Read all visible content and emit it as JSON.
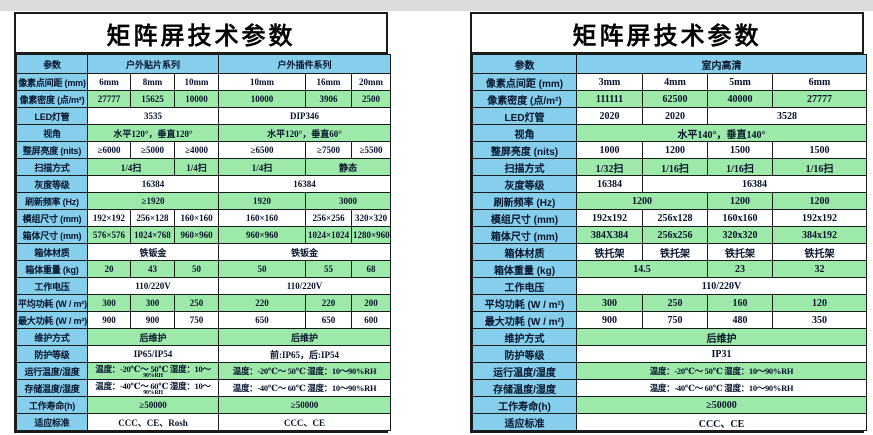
{
  "colors": {
    "cell_blue": "#86cfec",
    "cell_green": "#9de9a9",
    "grid_border": "#1b1b1b",
    "top_strip": "#dcdcdc"
  },
  "left_table": {
    "title": "矩阵屏技术参数",
    "header": {
      "param": "参数",
      "groups": [
        {
          "label": "户外贴片系列",
          "span": 3
        },
        {
          "label": "户外插件系列",
          "span": 3
        }
      ]
    },
    "rows": [
      {
        "label": "像素点间距 (mm)",
        "bg": "white",
        "cells": [
          {
            "text": "6mm"
          },
          {
            "text": "8mm"
          },
          {
            "text": "10mm"
          },
          {
            "text": "10mm"
          },
          {
            "text": "16mm"
          },
          {
            "text": "20mm"
          }
        ]
      },
      {
        "label": "像素密度 (点/m²)",
        "bg": "green",
        "cells": [
          {
            "text": "27777"
          },
          {
            "text": "15625"
          },
          {
            "text": "10000"
          },
          {
            "text": "10000"
          },
          {
            "text": "3906"
          },
          {
            "text": "2500"
          }
        ]
      },
      {
        "label": "LED灯管",
        "bg": "white",
        "cells": [
          {
            "text": "3535",
            "span": 3
          },
          {
            "text": "DIP346",
            "span": 3
          }
        ]
      },
      {
        "label": "视角",
        "bg": "green",
        "cells": [
          {
            "text": "水平120°，垂直120°",
            "span": 3
          },
          {
            "text": "水平120°，垂直60°",
            "span": 3
          }
        ]
      },
      {
        "label": "整屏亮度 (nits)",
        "bg": "white",
        "cells": [
          {
            "text": "≥6000"
          },
          {
            "text": "≥5000"
          },
          {
            "text": "≥4000"
          },
          {
            "text": "≥6500"
          },
          {
            "text": "≥7500"
          },
          {
            "text": "≥5500"
          }
        ]
      },
      {
        "label": "扫描方式",
        "bg": "green",
        "cells": [
          {
            "text": "1/4扫",
            "span": 2
          },
          {
            "text": "1/4扫"
          },
          {
            "text": "1/4扫"
          },
          {
            "text": "静态",
            "span": 2
          }
        ]
      },
      {
        "label": "灰度等级",
        "bg": "white",
        "cells": [
          {
            "text": "16384",
            "span": 3
          },
          {
            "text": "16384",
            "span": 3
          }
        ]
      },
      {
        "label": "刷新频率 (Hz)",
        "bg": "green",
        "cells": [
          {
            "text": "≥1920",
            "span": 3
          },
          {
            "text": "1920"
          },
          {
            "text": "3000",
            "span": 2
          }
        ]
      },
      {
        "label": "模组尺寸 (mm)",
        "bg": "white",
        "cells": [
          {
            "text": "192×192"
          },
          {
            "text": "256×128"
          },
          {
            "text": "160×160"
          },
          {
            "text": "160×160"
          },
          {
            "text": "256×256"
          },
          {
            "text": "320×320"
          }
        ]
      },
      {
        "label": "箱体尺寸 (mm)",
        "bg": "green",
        "cells": [
          {
            "text": "576×576"
          },
          {
            "text": "1024×768"
          },
          {
            "text": "960×960"
          },
          {
            "text": "960×960"
          },
          {
            "text": "1024×1024"
          },
          {
            "text": "1280×960"
          }
        ]
      },
      {
        "label": "箱体材质",
        "bg": "white",
        "cells": [
          {
            "text": "铁钣金",
            "span": 3
          },
          {
            "text": "铁钣金",
            "span": 3
          }
        ]
      },
      {
        "label": "箱体重量 (kg)",
        "bg": "green",
        "cells": [
          {
            "text": "20"
          },
          {
            "text": "43"
          },
          {
            "text": "50"
          },
          {
            "text": "50"
          },
          {
            "text": "55"
          },
          {
            "text": "68"
          }
        ]
      },
      {
        "label": "工作电压",
        "bg": "white",
        "cells": [
          {
            "text": "110/220V",
            "span": 3
          },
          {
            "text": "110/220V",
            "span": 3
          }
        ]
      },
      {
        "label": "平均功耗 (W / m²)",
        "bg": "green",
        "cells": [
          {
            "text": "300"
          },
          {
            "text": "300"
          },
          {
            "text": "250"
          },
          {
            "text": "220"
          },
          {
            "text": "220"
          },
          {
            "text": "200"
          }
        ]
      },
      {
        "label": "最大功耗 (W / m²)",
        "bg": "white",
        "cells": [
          {
            "text": "900"
          },
          {
            "text": "900"
          },
          {
            "text": "750"
          },
          {
            "text": "650"
          },
          {
            "text": "650"
          },
          {
            "text": "600"
          }
        ]
      },
      {
        "label": "维护方式",
        "bg": "green",
        "cells": [
          {
            "text": "后维护",
            "span": 3
          },
          {
            "text": "后维护",
            "span": 3
          }
        ]
      },
      {
        "label": "防护等级",
        "bg": "white",
        "cells": [
          {
            "text": "IP65/IP54",
            "span": 3
          },
          {
            "text": "前:IP65，后:IP54",
            "span": 3
          }
        ]
      },
      {
        "label": "运行温度/湿度",
        "bg": "green",
        "cells": [
          {
            "text": "温度：-20℃～ 50℃ 湿度：10～",
            "sub": "90%RH",
            "span": 3
          },
          {
            "text": "温度：-20℃～ 50℃ 湿度：10～90%RH",
            "span": 3
          }
        ]
      },
      {
        "label": "存储温度/湿度",
        "bg": "white",
        "cells": [
          {
            "text": "温度：-40℃～ 60℃ 湿度：10～",
            "sub": "90%RH",
            "span": 3
          },
          {
            "text": "温度：-40℃～ 60℃ 湿度：10～90%RH",
            "span": 3
          }
        ]
      },
      {
        "label": "工作寿命(h)",
        "bg": "green",
        "cells": [
          {
            "text": "≥50000",
            "span": 3
          },
          {
            "text": "≥50000",
            "span": 3
          }
        ]
      },
      {
        "label": "适应标准",
        "bg": "white",
        "cells": [
          {
            "text": "CCC、CE、Rosh",
            "span": 3
          },
          {
            "text": "CCC、CE",
            "span": 3
          }
        ]
      }
    ]
  },
  "right_table": {
    "title": "矩阵屏技术参数",
    "header": {
      "param": "参数",
      "groups": [
        {
          "label": "室内高清",
          "span": 4
        }
      ]
    },
    "rows": [
      {
        "label": "像素点间距 (mm)",
        "bg": "white",
        "cells": [
          {
            "text": "3mm"
          },
          {
            "text": "4mm"
          },
          {
            "text": "5mm"
          },
          {
            "text": "6mm"
          }
        ]
      },
      {
        "label": "像素密度 (点/m²)",
        "bg": "green",
        "cells": [
          {
            "text": "111111"
          },
          {
            "text": "62500"
          },
          {
            "text": "40000"
          },
          {
            "text": "27777"
          }
        ]
      },
      {
        "label": "LED灯管",
        "bg": "white",
        "cells": [
          {
            "text": "2020"
          },
          {
            "text": "2020"
          },
          {
            "text": "3528",
            "span": 2
          }
        ]
      },
      {
        "label": "视角",
        "bg": "green",
        "cells": [
          {
            "text": "水平140°，垂直140°",
            "span": 4
          }
        ]
      },
      {
        "label": "整屏亮度 (nits)",
        "bg": "white",
        "cells": [
          {
            "text": "1000"
          },
          {
            "text": "1200"
          },
          {
            "text": "1500"
          },
          {
            "text": "1500"
          }
        ]
      },
      {
        "label": "扫描方式",
        "bg": "green",
        "cells": [
          {
            "text": "1/32扫"
          },
          {
            "text": "1/16扫"
          },
          {
            "text": "1/16扫"
          },
          {
            "text": "1/16扫"
          }
        ]
      },
      {
        "label": "灰度等级",
        "bg": "white",
        "cells": [
          {
            "text": "16384"
          },
          {
            "text": "16384",
            "span": 3
          }
        ]
      },
      {
        "label": "刷新频率 (Hz)",
        "bg": "green",
        "cells": [
          {
            "text": "1200",
            "span": 2
          },
          {
            "text": "1200"
          },
          {
            "text": "1200"
          }
        ]
      },
      {
        "label": "模组尺寸 (mm)",
        "bg": "white",
        "cells": [
          {
            "text": "192x192"
          },
          {
            "text": "256x128"
          },
          {
            "text": "160x160"
          },
          {
            "text": "192x192"
          }
        ]
      },
      {
        "label": "箱体尺寸 (mm)",
        "bg": "green",
        "cells": [
          {
            "text": "384X384"
          },
          {
            "text": "256x256"
          },
          {
            "text": "320x320"
          },
          {
            "text": "384x192"
          }
        ]
      },
      {
        "label": "箱体材质",
        "bg": "white",
        "cells": [
          {
            "text": "铁托架"
          },
          {
            "text": "铁托架"
          },
          {
            "text": "铁托架"
          },
          {
            "text": "铁托架"
          }
        ]
      },
      {
        "label": "箱体重量 (kg)",
        "bg": "green",
        "cells": [
          {
            "text": "14.5",
            "span": 2
          },
          {
            "text": "23"
          },
          {
            "text": "32"
          }
        ]
      },
      {
        "label": "工作电压",
        "bg": "white",
        "cells": [
          {
            "text": "110/220V",
            "span": 4
          }
        ]
      },
      {
        "label": "平均功耗 (W / m²)",
        "bg": "green",
        "cells": [
          {
            "text": "300"
          },
          {
            "text": "250"
          },
          {
            "text": "160"
          },
          {
            "text": "120"
          }
        ]
      },
      {
        "label": "最大功耗 (W / m²)",
        "bg": "white",
        "cells": [
          {
            "text": "900"
          },
          {
            "text": "750"
          },
          {
            "text": "480"
          },
          {
            "text": "350"
          }
        ]
      },
      {
        "label": "维护方式",
        "bg": "green",
        "cells": [
          {
            "text": "后维护",
            "span": 4
          }
        ]
      },
      {
        "label": "防护等级",
        "bg": "white",
        "cells": [
          {
            "text": "IP31",
            "span": 4
          }
        ]
      },
      {
        "label": "运行温度/湿度",
        "bg": "green",
        "cells": [
          {
            "text": "温度：-20℃～ 50℃ 湿度：10～90%RH",
            "span": 4
          }
        ]
      },
      {
        "label": "存储温度/湿度",
        "bg": "white",
        "cells": [
          {
            "text": "温度：-40℃～ 60℃ 湿度：10～90%RH",
            "span": 4
          }
        ]
      },
      {
        "label": "工作寿命(h)",
        "bg": "green",
        "cells": [
          {
            "text": "≥50000",
            "span": 4
          }
        ]
      },
      {
        "label": "适应标准",
        "bg": "white",
        "cells": [
          {
            "text": "CCC、CE",
            "span": 4
          }
        ]
      }
    ]
  }
}
